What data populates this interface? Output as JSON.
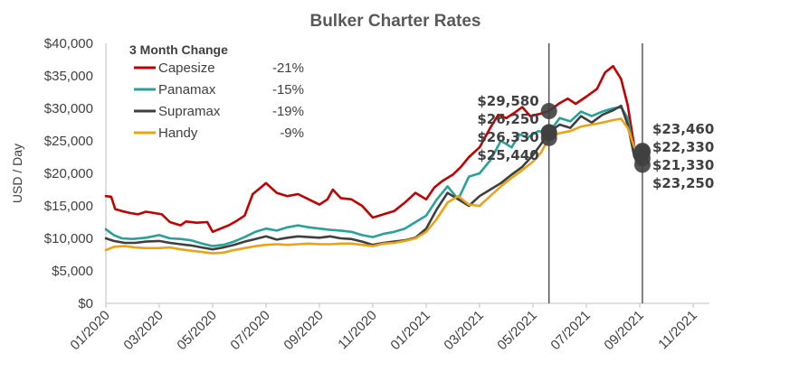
{
  "chart_data": {
    "type": "line",
    "title": "Bulker Charter Rates",
    "ylabel": "USD / Day",
    "xlabel": "",
    "ylim": [
      0,
      40000
    ],
    "yticks": [
      0,
      5000,
      10000,
      15000,
      20000,
      25000,
      30000,
      35000,
      40000
    ],
    "ytick_labels": [
      "$0",
      "$5,000",
      "$10,000",
      "$15,000",
      "$20,000",
      "$25,000",
      "$30,000",
      "$35,000",
      "$40,000"
    ],
    "xtick_labels": [
      "01/2020",
      "03/2020",
      "05/2020",
      "07/2020",
      "09/2020",
      "11/2020",
      "01/2021",
      "03/2021",
      "05/2021",
      "07/2021",
      "09/2021",
      "11/2021"
    ],
    "grid": false,
    "legend": {
      "title": "3 Month Change",
      "position": "top-left",
      "entries": [
        {
          "name": "Capesize",
          "change": "-21%"
        },
        {
          "name": "Panamax",
          "change": "-15%"
        },
        {
          "name": "Supramax",
          "change": "-19%"
        },
        {
          "name": "Handy",
          "change": "-9%"
        }
      ]
    },
    "series": [
      {
        "name": "Capesize",
        "color": "#c00000",
        "points": [
          [
            0.0,
            16500
          ],
          [
            0.2,
            16400
          ],
          [
            0.35,
            14500
          ],
          [
            0.6,
            14200
          ],
          [
            0.9,
            13900
          ],
          [
            1.2,
            13700
          ],
          [
            1.5,
            14100
          ],
          [
            1.8,
            13900
          ],
          [
            2.1,
            13700
          ],
          [
            2.4,
            12500
          ],
          [
            2.8,
            12000
          ],
          [
            3.0,
            12600
          ],
          [
            3.4,
            12400
          ],
          [
            3.8,
            12500
          ],
          [
            4.0,
            11000
          ],
          [
            4.3,
            11500
          ],
          [
            4.6,
            12000
          ],
          [
            4.9,
            12700
          ],
          [
            5.2,
            13500
          ],
          [
            5.5,
            16800
          ],
          [
            5.8,
            17800
          ],
          [
            6.0,
            18500
          ],
          [
            6.4,
            17000
          ],
          [
            6.8,
            16500
          ],
          [
            7.2,
            16800
          ],
          [
            7.6,
            16000
          ],
          [
            8.0,
            15200
          ],
          [
            8.3,
            16000
          ],
          [
            8.5,
            17500
          ],
          [
            8.8,
            16200
          ],
          [
            9.2,
            16000
          ],
          [
            9.6,
            15000
          ],
          [
            10.0,
            13200
          ],
          [
            10.4,
            13700
          ],
          [
            10.8,
            14200
          ],
          [
            11.2,
            15500
          ],
          [
            11.6,
            17000
          ],
          [
            12.0,
            16000
          ],
          [
            12.3,
            17800
          ],
          [
            12.6,
            18800
          ],
          [
            13.0,
            19800
          ],
          [
            13.3,
            21000
          ],
          [
            13.6,
            22500
          ],
          [
            14.0,
            24000
          ],
          [
            14.4,
            27000
          ],
          [
            14.7,
            29000
          ],
          [
            15.0,
            28500
          ],
          [
            15.3,
            29300
          ],
          [
            15.6,
            30200
          ],
          [
            15.9,
            28800
          ],
          [
            16.3,
            29200
          ],
          [
            16.6,
            29580
          ],
          [
            17.0,
            30800
          ],
          [
            17.3,
            31500
          ],
          [
            17.6,
            30700
          ],
          [
            18.0,
            31800
          ],
          [
            18.4,
            33000
          ],
          [
            18.7,
            35500
          ],
          [
            19.0,
            36500
          ],
          [
            19.3,
            34500
          ],
          [
            19.55,
            30500
          ],
          [
            19.8,
            24000
          ],
          [
            20.1,
            23460
          ]
        ]
      },
      {
        "name": "Panamax",
        "color": "#2aa198",
        "points": [
          [
            0.0,
            11400
          ],
          [
            0.3,
            10500
          ],
          [
            0.6,
            10000
          ],
          [
            1.0,
            9900
          ],
          [
            1.5,
            10100
          ],
          [
            2.0,
            10500
          ],
          [
            2.4,
            10000
          ],
          [
            2.8,
            9900
          ],
          [
            3.2,
            9700
          ],
          [
            3.6,
            9200
          ],
          [
            4.0,
            8800
          ],
          [
            4.4,
            9000
          ],
          [
            4.8,
            9500
          ],
          [
            5.2,
            10200
          ],
          [
            5.6,
            11000
          ],
          [
            6.0,
            11500
          ],
          [
            6.4,
            11200
          ],
          [
            6.8,
            11700
          ],
          [
            7.2,
            12000
          ],
          [
            7.6,
            11700
          ],
          [
            8.0,
            11500
          ],
          [
            8.4,
            11300
          ],
          [
            8.8,
            11200
          ],
          [
            9.2,
            11000
          ],
          [
            9.6,
            10500
          ],
          [
            10.0,
            10200
          ],
          [
            10.4,
            10700
          ],
          [
            10.8,
            11000
          ],
          [
            11.2,
            11500
          ],
          [
            11.6,
            12500
          ],
          [
            12.0,
            13500
          ],
          [
            12.4,
            16000
          ],
          [
            12.8,
            18000
          ],
          [
            13.2,
            16000
          ],
          [
            13.6,
            19500
          ],
          [
            14.0,
            20000
          ],
          [
            14.4,
            22000
          ],
          [
            14.8,
            25000
          ],
          [
            15.2,
            24000
          ],
          [
            15.5,
            26000
          ],
          [
            15.8,
            25500
          ],
          [
            16.2,
            26500
          ],
          [
            16.6,
            26250
          ],
          [
            17.0,
            28500
          ],
          [
            17.4,
            28000
          ],
          [
            17.8,
            29500
          ],
          [
            18.2,
            28800
          ],
          [
            18.6,
            29500
          ],
          [
            19.0,
            30000
          ],
          [
            19.3,
            30200
          ],
          [
            19.55,
            28500
          ],
          [
            19.8,
            23000
          ],
          [
            20.1,
            22330
          ]
        ]
      },
      {
        "name": "Supramax",
        "color": "#3f3f3f",
        "points": [
          [
            0.0,
            10000
          ],
          [
            0.3,
            9600
          ],
          [
            0.7,
            9300
          ],
          [
            1.1,
            9300
          ],
          [
            1.5,
            9500
          ],
          [
            2.0,
            9600
          ],
          [
            2.4,
            9300
          ],
          [
            2.8,
            9100
          ],
          [
            3.2,
            8900
          ],
          [
            3.6,
            8600
          ],
          [
            4.0,
            8300
          ],
          [
            4.4,
            8600
          ],
          [
            4.8,
            9000
          ],
          [
            5.2,
            9500
          ],
          [
            5.6,
            9900
          ],
          [
            6.0,
            10300
          ],
          [
            6.4,
            9800
          ],
          [
            6.8,
            10100
          ],
          [
            7.2,
            10300
          ],
          [
            7.6,
            10200
          ],
          [
            8.0,
            10100
          ],
          [
            8.4,
            10300
          ],
          [
            8.8,
            10000
          ],
          [
            9.2,
            9900
          ],
          [
            9.6,
            9500
          ],
          [
            10.0,
            9000
          ],
          [
            10.4,
            9300
          ],
          [
            10.8,
            9500
          ],
          [
            11.2,
            9700
          ],
          [
            11.6,
            10100
          ],
          [
            12.0,
            11500
          ],
          [
            12.4,
            14500
          ],
          [
            12.8,
            17000
          ],
          [
            13.2,
            16000
          ],
          [
            13.6,
            15000
          ],
          [
            14.0,
            16500
          ],
          [
            14.4,
            17500
          ],
          [
            14.8,
            18500
          ],
          [
            15.2,
            19800
          ],
          [
            15.6,
            21000
          ],
          [
            16.0,
            22800
          ],
          [
            16.3,
            24500
          ],
          [
            16.6,
            26330
          ],
          [
            17.0,
            27500
          ],
          [
            17.4,
            27000
          ],
          [
            17.8,
            28800
          ],
          [
            18.2,
            27800
          ],
          [
            18.6,
            29000
          ],
          [
            19.0,
            29700
          ],
          [
            19.3,
            30400
          ],
          [
            19.55,
            27500
          ],
          [
            19.8,
            22500
          ],
          [
            20.1,
            21330
          ]
        ]
      },
      {
        "name": "Handy",
        "color": "#e8a317",
        "points": [
          [
            0.0,
            8200
          ],
          [
            0.3,
            8700
          ],
          [
            0.7,
            8800
          ],
          [
            1.1,
            8600
          ],
          [
            1.5,
            8500
          ],
          [
            2.0,
            8500
          ],
          [
            2.4,
            8600
          ],
          [
            2.8,
            8300
          ],
          [
            3.2,
            8100
          ],
          [
            3.6,
            7900
          ],
          [
            4.0,
            7700
          ],
          [
            4.4,
            7800
          ],
          [
            4.8,
            8200
          ],
          [
            5.2,
            8500
          ],
          [
            5.6,
            8800
          ],
          [
            6.0,
            9000
          ],
          [
            6.4,
            9100
          ],
          [
            6.8,
            9000
          ],
          [
            7.2,
            9100
          ],
          [
            7.6,
            9200
          ],
          [
            8.0,
            9100
          ],
          [
            8.4,
            9100
          ],
          [
            8.8,
            9200
          ],
          [
            9.2,
            9200
          ],
          [
            9.6,
            9000
          ],
          [
            10.0,
            8800
          ],
          [
            10.4,
            9200
          ],
          [
            10.8,
            9300
          ],
          [
            11.2,
            9600
          ],
          [
            11.6,
            10000
          ],
          [
            12.0,
            11000
          ],
          [
            12.4,
            13000
          ],
          [
            12.8,
            15500
          ],
          [
            13.2,
            16500
          ],
          [
            13.6,
            15200
          ],
          [
            14.0,
            15000
          ],
          [
            14.4,
            16500
          ],
          [
            14.8,
            18000
          ],
          [
            15.2,
            19300
          ],
          [
            15.6,
            20500
          ],
          [
            16.0,
            21800
          ],
          [
            16.3,
            23200
          ],
          [
            16.6,
            25440
          ],
          [
            17.0,
            26200
          ],
          [
            17.4,
            26500
          ],
          [
            17.8,
            27200
          ],
          [
            18.2,
            27500
          ],
          [
            18.6,
            27800
          ],
          [
            19.0,
            28200
          ],
          [
            19.3,
            28400
          ],
          [
            19.55,
            27000
          ],
          [
            19.8,
            24000
          ],
          [
            20.1,
            23250
          ]
        ]
      }
    ],
    "markers": [
      {
        "at": 16.6,
        "values": [
          29580,
          26250,
          26330,
          25440
        ],
        "labels": [
          "$29,580",
          "$26,250",
          "$26,330",
          "$25,440"
        ]
      },
      {
        "at": 20.1,
        "values": [
          23460,
          22330,
          21330,
          23250
        ],
        "labels": [
          "$23,460",
          "$22,330",
          "$21,330",
          "$23,250"
        ]
      }
    ]
  }
}
